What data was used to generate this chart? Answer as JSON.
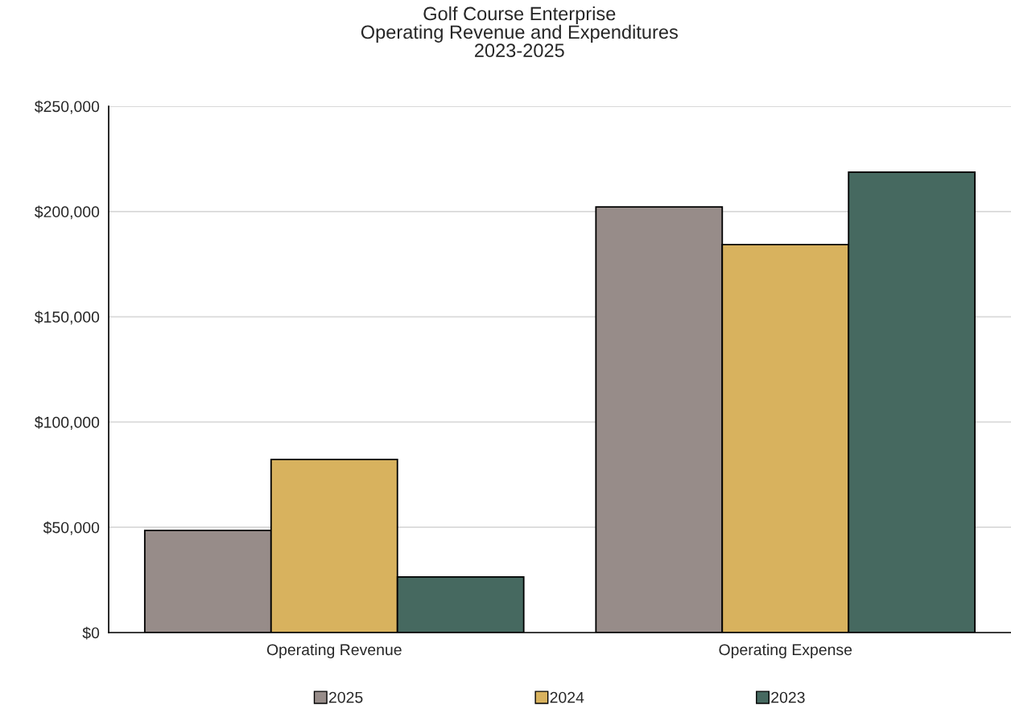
{
  "chart_data": {
    "type": "bar",
    "title": "Golf Course Enterprise\nOperating Revenue and Expenditures\n2023-2025",
    "categories": [
      "Operating Revenue",
      "Operating Expense"
    ],
    "series": [
      {
        "name": "2025",
        "color": "#978c89",
        "values": [
          48500,
          202200
        ]
      },
      {
        "name": "2024",
        "color": "#d8b25e",
        "values": [
          82200,
          184300
        ]
      },
      {
        "name": "2023",
        "color": "#466960",
        "values": [
          26400,
          218700
        ]
      }
    ],
    "ylim": [
      0,
      250000
    ],
    "yticks": [
      {
        "value": 0,
        "label": "$0"
      },
      {
        "value": 50000,
        "label": "$50,000"
      },
      {
        "value": 100000,
        "label": "$100,000"
      },
      {
        "value": 150000,
        "label": "$150,000"
      },
      {
        "value": 200000,
        "label": "$200,000"
      },
      {
        "value": 250000,
        "label": "$250,000"
      }
    ],
    "grid": "y",
    "legend": "bottom"
  }
}
